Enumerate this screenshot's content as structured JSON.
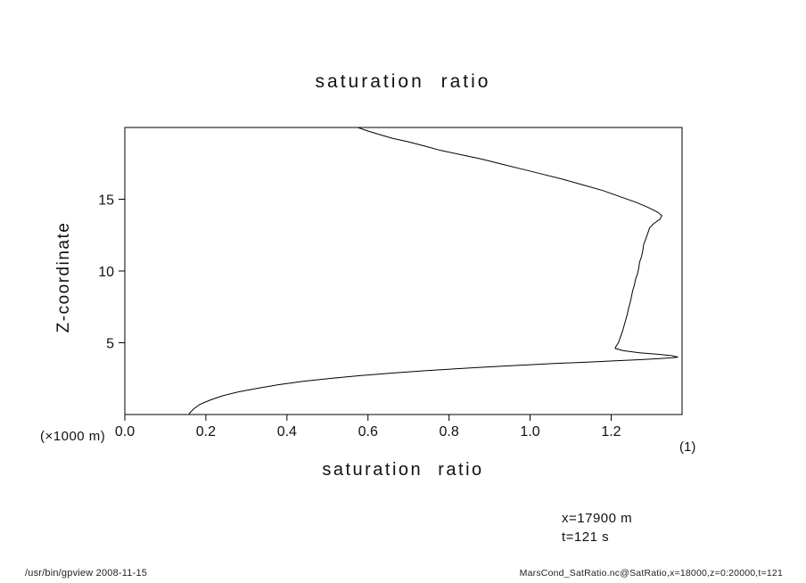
{
  "chart_data": {
    "type": "line",
    "title": "saturation ratio",
    "xlabel": "saturation ratio",
    "ylabel": "Z-coordinate",
    "y_units": "(×1000 m)",
    "x_units": "(1)",
    "xlim": [
      0.0,
      1.375
    ],
    "ylim": [
      0,
      20
    ],
    "x_ticks": [
      0.0,
      0.2,
      0.4,
      0.6,
      0.8,
      1.0,
      1.2
    ],
    "x_tick_labels": [
      "0.0",
      "0.2",
      "0.4",
      "0.6",
      "0.8",
      "1.0",
      "1.2"
    ],
    "y_ticks": [
      5,
      10,
      15
    ],
    "y_tick_labels": [
      "5",
      "10",
      "15"
    ],
    "grid": false,
    "legend": "none",
    "line_color": "#000000",
    "series": [
      {
        "name": "SatRatio",
        "points": [
          [
            0.575,
            20.0
          ],
          [
            0.6,
            19.75
          ],
          [
            0.63,
            19.5
          ],
          [
            0.66,
            19.25
          ],
          [
            0.7,
            19.0
          ],
          [
            0.74,
            18.7
          ],
          [
            0.78,
            18.4
          ],
          [
            0.83,
            18.1
          ],
          [
            0.88,
            17.8
          ],
          [
            0.93,
            17.45
          ],
          [
            0.98,
            17.1
          ],
          [
            1.03,
            16.75
          ],
          [
            1.08,
            16.4
          ],
          [
            1.13,
            16.0
          ],
          [
            1.18,
            15.6
          ],
          [
            1.22,
            15.2
          ],
          [
            1.26,
            14.8
          ],
          [
            1.29,
            14.45
          ],
          [
            1.315,
            14.1
          ],
          [
            1.325,
            13.85
          ],
          [
            1.32,
            13.6
          ],
          [
            1.305,
            13.3
          ],
          [
            1.295,
            13.0
          ],
          [
            1.29,
            12.6
          ],
          [
            1.285,
            12.2
          ],
          [
            1.28,
            11.8
          ],
          [
            1.278,
            11.4
          ],
          [
            1.275,
            11.0
          ],
          [
            1.27,
            10.6
          ],
          [
            1.268,
            10.2
          ],
          [
            1.265,
            9.8
          ],
          [
            1.26,
            9.4
          ],
          [
            1.257,
            9.0
          ],
          [
            1.253,
            8.6
          ],
          [
            1.25,
            8.2
          ],
          [
            1.247,
            7.8
          ],
          [
            1.243,
            7.4
          ],
          [
            1.24,
            7.0
          ],
          [
            1.236,
            6.6
          ],
          [
            1.232,
            6.2
          ],
          [
            1.228,
            5.8
          ],
          [
            1.223,
            5.4
          ],
          [
            1.218,
            5.0
          ],
          [
            1.212,
            4.75
          ],
          [
            1.21,
            4.6
          ],
          [
            1.23,
            4.45
          ],
          [
            1.27,
            4.3
          ],
          [
            1.315,
            4.2
          ],
          [
            1.35,
            4.1
          ],
          [
            1.365,
            4.0
          ],
          [
            1.35,
            3.95
          ],
          [
            1.32,
            3.9
          ],
          [
            1.27,
            3.82
          ],
          [
            1.21,
            3.74
          ],
          [
            1.14,
            3.65
          ],
          [
            1.06,
            3.55
          ],
          [
            0.98,
            3.44
          ],
          [
            0.9,
            3.32
          ],
          [
            0.82,
            3.19
          ],
          [
            0.74,
            3.05
          ],
          [
            0.66,
            2.89
          ],
          [
            0.58,
            2.71
          ],
          [
            0.51,
            2.52
          ],
          [
            0.44,
            2.31
          ],
          [
            0.38,
            2.08
          ],
          [
            0.33,
            1.84
          ],
          [
            0.28,
            1.58
          ],
          [
            0.24,
            1.3
          ],
          [
            0.21,
            1.0
          ],
          [
            0.185,
            0.7
          ],
          [
            0.17,
            0.4
          ],
          [
            0.16,
            0.1
          ],
          [
            0.158,
            0.0
          ]
        ]
      }
    ]
  },
  "annotations": {
    "x_position": "x=17900 m",
    "time": "t=121 s"
  },
  "footer": {
    "left": "/usr/bin/gpview  2008-11-15",
    "right": "MarsCond_SatRatio.nc@SatRatio,x=18000,z=0:20000,t=121"
  }
}
